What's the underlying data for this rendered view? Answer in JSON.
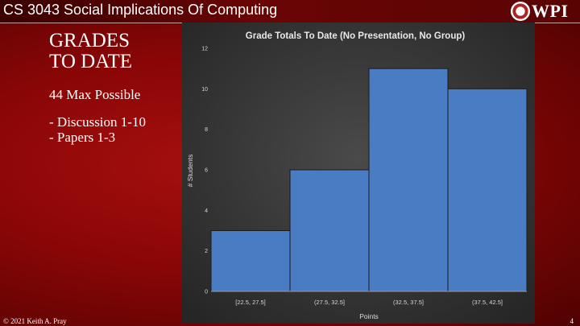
{
  "header": {
    "course_title": "CS 3043 Social Implications Of Computing",
    "logo_text": "WPI"
  },
  "slide": {
    "heading_line1": "GRADES",
    "heading_line2": "TO DATE",
    "max_possible": "44 Max Possible",
    "bullets": [
      "- Discussion 1-10",
      "- Papers 1-3"
    ]
  },
  "footer": {
    "copyright": "© 2021 Keith A. Pray",
    "page_number": "4"
  },
  "chart_data": {
    "type": "bar",
    "title": "Grade Totals To Date (No Presentation, No Group)",
    "xlabel": "Points",
    "ylabel": "# Students",
    "categories": [
      "[22.5, 27.5]",
      "(27.5, 32.5]",
      "(32.5, 37.5]",
      "(37.5, 42.5]"
    ],
    "values": [
      3,
      6,
      11,
      10
    ],
    "ylim": [
      0,
      12
    ],
    "yticks": [
      0,
      2,
      4,
      6,
      8,
      10,
      12
    ],
    "grid": false,
    "legend": "none",
    "bar_color": "#4a7cc4",
    "background_color": "#3a3a3a"
  }
}
